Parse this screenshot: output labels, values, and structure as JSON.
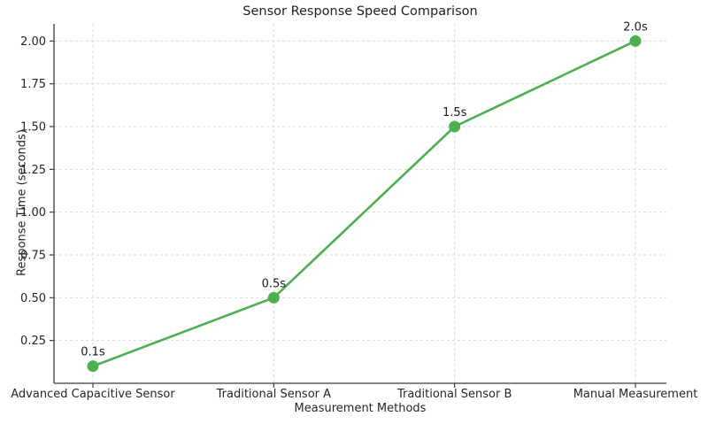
{
  "chart_data": {
    "type": "line",
    "title": "Sensor Response Speed Comparison",
    "xlabel": "Measurement Methods",
    "ylabel": "Response Time (seconds)",
    "categories": [
      "Advanced Capacitive Sensor",
      "Traditional Sensor A",
      "Traditional Sensor B",
      "Manual Measurement"
    ],
    "series": [
      {
        "name": "Response Time",
        "values": [
          0.1,
          0.5,
          1.5,
          2.0
        ],
        "point_labels": [
          "0.1s",
          "0.5s",
          "1.5s",
          "2.0s"
        ]
      }
    ],
    "yticks": [
      0.25,
      0.5,
      0.75,
      1.0,
      1.25,
      1.5,
      1.75,
      2.0
    ],
    "ytick_labels": [
      "0.25",
      "0.50",
      "0.75",
      "1.00",
      "1.25",
      "1.50",
      "1.75",
      "2.00"
    ],
    "ylim": [
      0,
      2.1
    ],
    "grid": true,
    "grid_style": "dashed",
    "legend_position": "none",
    "colors": {
      "line": "#4caf50",
      "marker": "#4caf50",
      "grid": "#d9d9d9",
      "spine": "#3b3b3b",
      "text": "#262626",
      "title": "#1f1f1f",
      "background": "#ffffff"
    }
  }
}
